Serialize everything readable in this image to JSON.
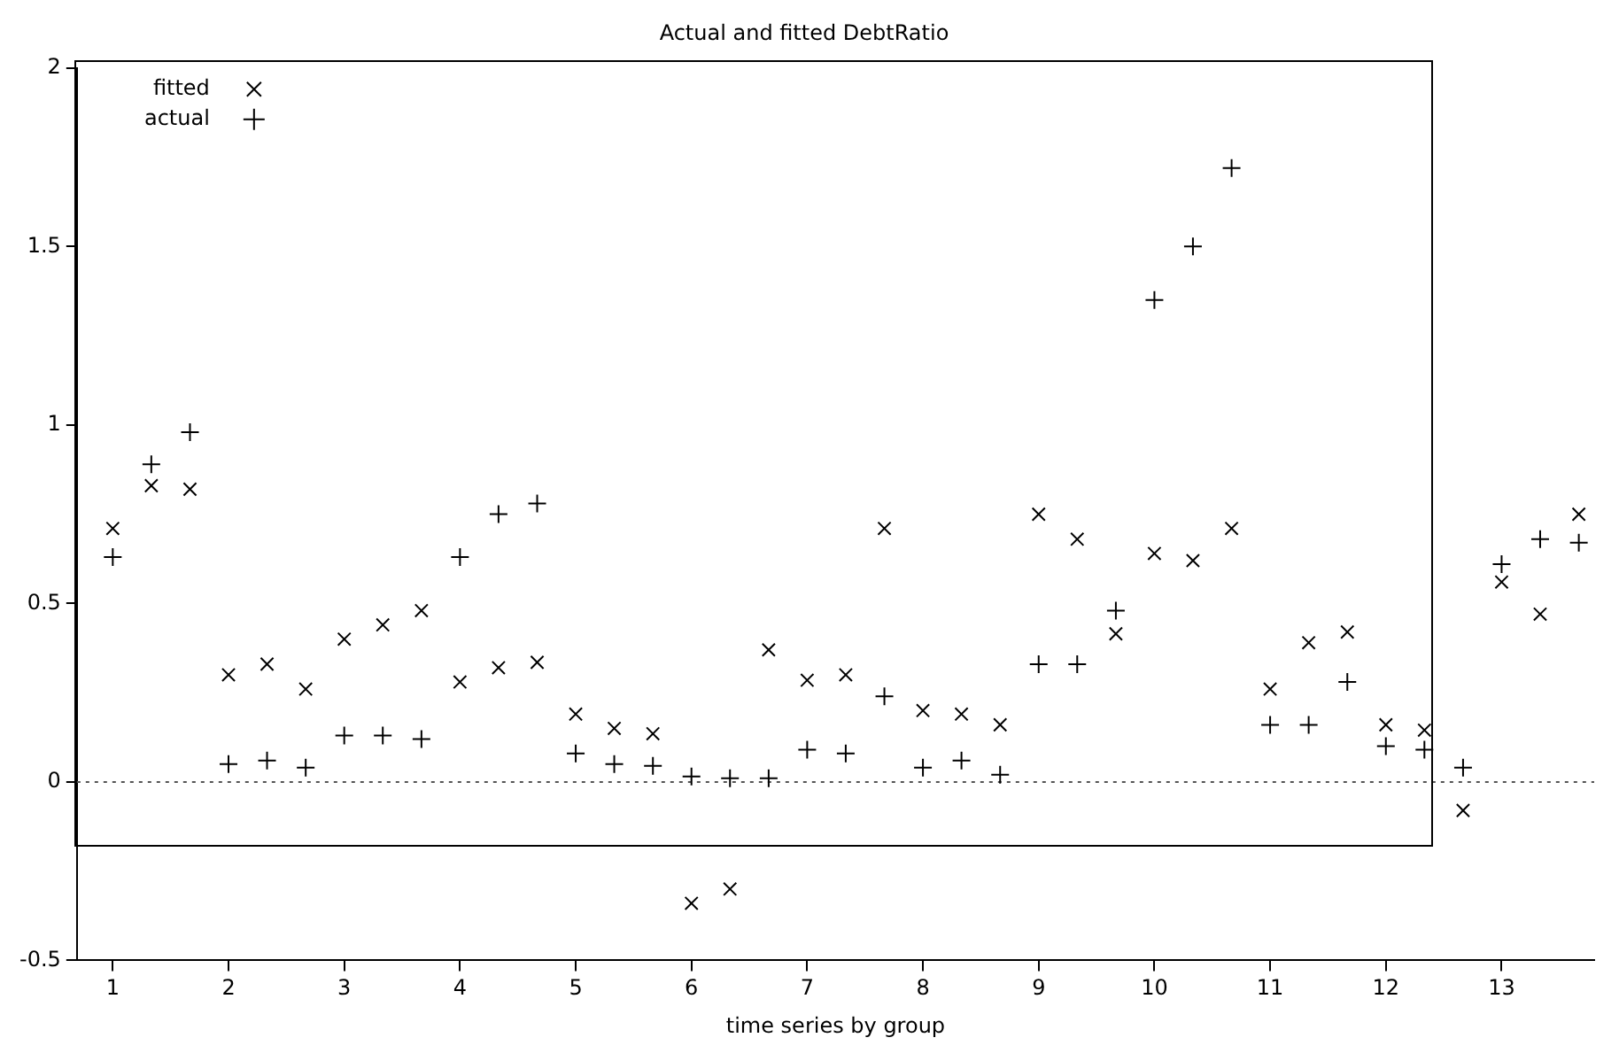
{
  "chart_data": {
    "type": "scatter",
    "title": "Actual and fitted DebtRatio",
    "xlabel": "time series by group",
    "x": [
      1,
      1.333,
      1.667,
      2,
      2.333,
      2.667,
      3,
      3.333,
      3.667,
      4,
      4.333,
      4.667,
      5,
      5.333,
      5.667,
      6,
      6.333,
      6.667,
      7,
      7.333,
      7.667,
      8,
      8.333,
      8.667,
      9,
      9.333,
      9.667,
      10,
      10.333,
      10.667,
      11,
      11.333,
      11.667,
      12,
      12.333,
      12.667,
      13,
      13.333,
      13.667
    ],
    "series": [
      {
        "name": "fitted",
        "color": "#000000",
        "values": [
          0.71,
          0.83,
          0.82,
          0.3,
          0.33,
          0.26,
          0.4,
          0.44,
          0.48,
          0.28,
          0.32,
          0.335,
          0.19,
          0.15,
          0.135,
          -0.34,
          -0.3,
          0.37,
          0.285,
          0.3,
          0.71,
          0.2,
          0.19,
          0.16,
          0.75,
          0.68,
          0.415,
          0.64,
          0.62,
          0.71,
          0.26,
          0.39,
          0.42,
          0.16,
          0.145,
          -0.08,
          0.56,
          0.47,
          0.75
        ]
      },
      {
        "name": "actual",
        "color": "#000000",
        "values": [
          0.63,
          0.89,
          0.98,
          0.05,
          0.06,
          0.04,
          0.13,
          0.13,
          0.12,
          0.63,
          0.75,
          0.78,
          0.08,
          0.05,
          0.045,
          0.015,
          0.01,
          0.01,
          0.09,
          0.08,
          0.24,
          0.04,
          0.06,
          0.02,
          0.33,
          0.33,
          0.48,
          1.35,
          1.5,
          1.72,
          0.16,
          0.16,
          0.28,
          0.1,
          0.09,
          0.04,
          0.61,
          0.68,
          0.67
        ]
      }
    ],
    "xlim": [
      0.69,
      13.8
    ],
    "xticks": [
      1,
      2,
      3,
      4,
      5,
      6,
      7,
      8,
      9,
      10,
      11,
      12,
      13
    ],
    "ylim": [
      -0.5,
      2
    ],
    "yticks": [
      -0.5,
      0,
      0.5,
      1,
      1.5,
      2
    ],
    "ref_lines": [
      {
        "axis": "y",
        "value": 0,
        "line_style": "dotted",
        "color": "#555555"
      }
    ],
    "marker": "cross",
    "legend": "top left",
    "grid": false
  }
}
